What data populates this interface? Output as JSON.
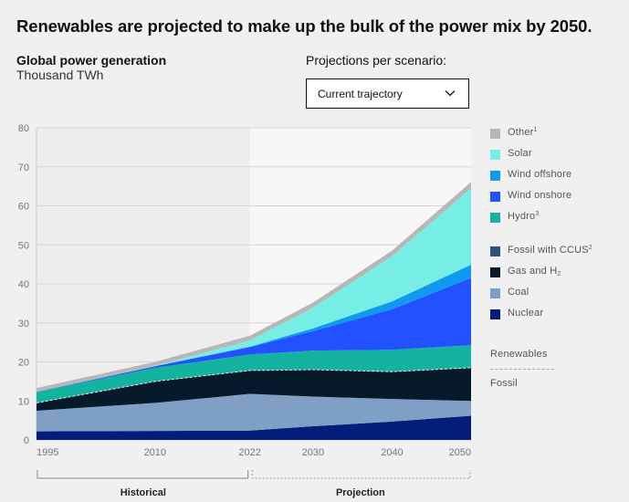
{
  "title": "Renewables are projected to make up the bulk of the power mix by 2050.",
  "subtitle": "Global power generation",
  "unit": "Thousand TWh",
  "scenario": {
    "label": "Projections per scenario:",
    "selected": "Current trajectory"
  },
  "colors": {
    "other": "#b7b7b7",
    "solar": "#76eee5",
    "wind_offshore": "#0f9af0",
    "wind_onshore": "#2251ff",
    "hydro": "#14b3a0",
    "fossil_ccus": "#2c5187",
    "gas_h2": "#061a2b",
    "coal": "#7f9fc4",
    "nuclear": "#051c7a"
  },
  "legend": {
    "items": [
      {
        "key": "other",
        "label": "Other",
        "sup": "1",
        "sub": ""
      },
      {
        "key": "solar",
        "label": "Solar",
        "sup": "",
        "sub": ""
      },
      {
        "key": "wind_offshore",
        "label": "Wind offshore",
        "sup": "",
        "sub": ""
      },
      {
        "key": "wind_onshore",
        "label": "Wind onshore",
        "sup": "",
        "sub": ""
      },
      {
        "key": "hydro",
        "label": "Hydro",
        "sup": "3",
        "sub": ""
      },
      {
        "key": "fossil_ccus",
        "label": "Fossil with CCUS",
        "sup": "2",
        "sub": ""
      },
      {
        "key": "gas_h2",
        "label": "Gas and H",
        "sup": "",
        "sub": "2"
      },
      {
        "key": "coal",
        "label": "Coal",
        "sup": "",
        "sub": ""
      },
      {
        "key": "nuclear",
        "label": "Nuclear",
        "sup": "",
        "sub": ""
      }
    ],
    "group_renewables": "Renewables",
    "group_fossil": "Fossil"
  },
  "periods": {
    "historical": "Historical",
    "projection": "Projection"
  },
  "chart_data": {
    "type": "area",
    "stacked": true,
    "title": "Global power generation",
    "ylabel": "Thousand TWh",
    "xlabel": "",
    "x": [
      1995,
      2010,
      2022,
      2030,
      2040,
      2050
    ],
    "x_tick_labels": [
      "1995",
      "2010",
      "2022",
      "2030",
      "2040",
      "2050"
    ],
    "ylim": [
      0,
      80
    ],
    "y_ticks": [
      0,
      10,
      20,
      30,
      40,
      50,
      60,
      70,
      80
    ],
    "grid": true,
    "legend_position": "right",
    "historical_range": [
      1995,
      2022
    ],
    "projection_range": [
      2022,
      2050
    ],
    "series": [
      {
        "key": "nuclear",
        "name": "Nuclear",
        "values": [
          2.2,
          2.3,
          2.4,
          3.5,
          4.7,
          6.2
        ]
      },
      {
        "key": "coal",
        "name": "Coal",
        "values": [
          5.3,
          7.2,
          9.4,
          7.6,
          5.8,
          3.8
        ]
      },
      {
        "key": "gas_h2",
        "name": "Gas and H2",
        "values": [
          2.0,
          5.5,
          6.0,
          6.9,
          7.0,
          8.5
        ]
      },
      {
        "key": "fossil_ccus",
        "name": "Fossil with CCUS",
        "values": [
          0,
          0,
          0,
          0,
          0,
          0
        ]
      },
      {
        "key": "hydro",
        "name": "Hydro",
        "values": [
          2.8,
          3.5,
          4.1,
          4.9,
          5.6,
          5.8
        ]
      },
      {
        "key": "wind_onshore",
        "name": "Wind onshore",
        "values": [
          0,
          0.4,
          1.9,
          5.0,
          10.4,
          17.2
        ]
      },
      {
        "key": "wind_offshore",
        "name": "Wind offshore",
        "values": [
          0,
          0,
          0.1,
          0.7,
          2.0,
          3.4
        ]
      },
      {
        "key": "solar",
        "name": "Solar",
        "values": [
          0,
          0.1,
          1.6,
          5.3,
          11.6,
          19.6
        ]
      },
      {
        "key": "other",
        "name": "Other",
        "values": [
          1.0,
          1.0,
          1.2,
          1.3,
          1.4,
          1.6
        ]
      }
    ],
    "renewables_fossil_divider": "between Gas and H2 and Hydro"
  }
}
